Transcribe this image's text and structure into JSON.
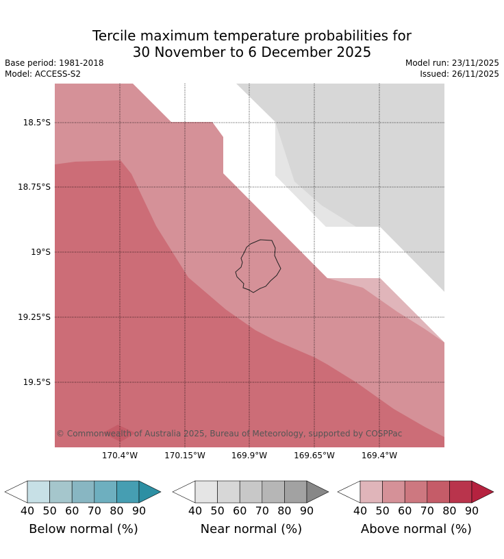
{
  "title_line1": "Tercile maximum temperature probabilities for",
  "title_line2": "30 November to 6 December 2025",
  "base_period": "Base period: 1981-2018",
  "model": "Model: ACCESS-S2",
  "model_run": "Model run: 23/11/2025",
  "issued": "Issued: 26/11/2025",
  "copyright": "© Commonwealth of Australia 2025, Bureau of Meteorology, supported by COSPPac",
  "lat_labels": [
    "18.5°S",
    "18.75°S",
    "19°S",
    "19.25°S",
    "19.5°S"
  ],
  "lon_labels": [
    "170.4°W",
    "170.15°W",
    "169.9°W",
    "169.65°W",
    "169.4°W"
  ],
  "colorbars": [
    {
      "label": "Below normal (%)",
      "ticks": [
        "40",
        "50",
        "60",
        "70",
        "80",
        "90"
      ],
      "colors": [
        "#c7e0e6",
        "#a5c6cc",
        "#88b6c2",
        "#6eafbf",
        "#469eb2",
        "#2d8fa3"
      ]
    },
    {
      "label": "Near normal (%)",
      "ticks": [
        "40",
        "50",
        "60",
        "70",
        "80",
        "90"
      ],
      "colors": [
        "#e5e5e5",
        "#d7d7d7",
        "#c8c8c8",
        "#b6b6b6",
        "#a2a2a2",
        "#878787"
      ]
    },
    {
      "label": "Above normal (%)",
      "ticks": [
        "40",
        "50",
        "60",
        "70",
        "80",
        "90"
      ],
      "colors": [
        "#e0b5ba",
        "#d59198",
        "#cd7880",
        "#c55c68",
        "#b9344c",
        "#b5223f"
      ]
    }
  ]
}
